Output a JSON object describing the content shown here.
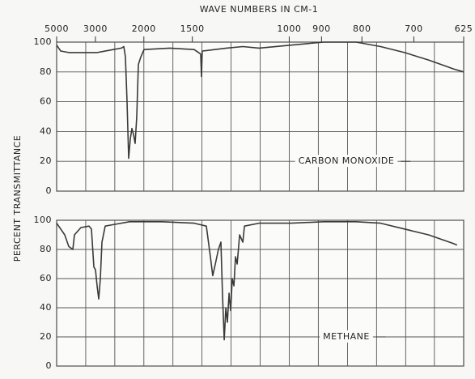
{
  "chart_data": [
    {
      "type": "line",
      "xlabel": "WAVE NUMBERS IN CM-1",
      "ylabel": "PERCENT TRANSMITTANCE",
      "annotation": "CARBON MONOXIDE",
      "xscale": "reciprocal",
      "color": "#3a3a3a",
      "xlim": [
        5000,
        625
      ],
      "ylim": [
        0,
        100
      ],
      "xticks": [
        5000,
        3000,
        2000,
        1500,
        1000,
        900,
        800,
        700,
        625
      ],
      "xgrid": [
        5000,
        3333,
        2500,
        2000,
        1667,
        1429,
        1250,
        1111,
        1000,
        909,
        833,
        769,
        714,
        667,
        625
      ],
      "yticks": [
        0,
        20,
        40,
        60,
        80,
        100
      ],
      "grid": true,
      "x": [
        5000,
        4675,
        4137,
        2948,
        2533,
        2366,
        2320,
        2291,
        2262,
        2234,
        2206,
        2180,
        2153,
        2128,
        2103,
        2079,
        2043,
        1998,
        1696,
        1486,
        1438,
        1432,
        1427,
        1275,
        1190,
        1116,
        993,
        894,
        813,
        761,
        716,
        676,
        651,
        639,
        625
      ],
      "values": [
        98,
        94,
        93,
        93,
        95,
        96,
        97,
        90,
        60,
        22,
        35,
        42,
        38,
        32,
        50,
        85,
        90,
        95,
        96,
        95,
        92,
        77,
        94,
        96,
        97,
        96,
        98,
        100,
        100,
        97,
        93,
        88,
        84,
        82,
        80
      ]
    },
    {
      "type": "line",
      "annotation": "METHANE",
      "xscale": "reciprocal",
      "color": "#3a3a3a",
      "xlim": [
        5000,
        625
      ],
      "ylim": [
        0,
        100
      ],
      "xgrid": [
        5000,
        3333,
        2500,
        2000,
        1667,
        1429,
        1250,
        1111,
        1000,
        909,
        833,
        769,
        714,
        667,
        625
      ],
      "yticks": [
        0,
        20,
        40,
        60,
        80,
        100
      ],
      "grid": true,
      "x": [
        5000,
        4390,
        4137,
        3911,
        3828,
        3527,
        3212,
        3128,
        3049,
        2998,
        2948,
        2901,
        2855,
        2810,
        2725,
        2533,
        2220,
        1780,
        1486,
        1399,
        1372,
        1357,
        1341,
        1322,
        1307,
        1298,
        1288,
        1279,
        1270,
        1261,
        1252,
        1244,
        1235,
        1227,
        1218,
        1206,
        1190,
        1182,
        1116,
        993,
        894,
        813,
        761,
        716,
        676,
        639,
        634
      ],
      "values": [
        98,
        90,
        82,
        80,
        90,
        95,
        96,
        94,
        68,
        66,
        55,
        46,
        60,
        85,
        96,
        97,
        99,
        99,
        98,
        96,
        75,
        62,
        70,
        80,
        85,
        50,
        18,
        40,
        30,
        50,
        38,
        60,
        55,
        75,
        70,
        90,
        85,
        96,
        98,
        98,
        99,
        99,
        98,
        94,
        90,
        84,
        83
      ]
    }
  ]
}
